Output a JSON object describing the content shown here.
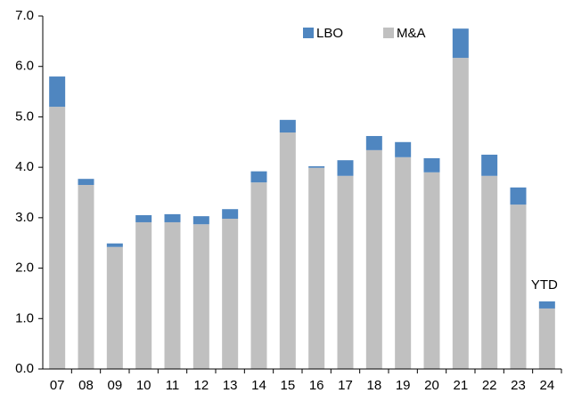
{
  "chart_data": {
    "type": "bar",
    "stacked": true,
    "categories": [
      "07",
      "08",
      "09",
      "10",
      "11",
      "12",
      "13",
      "14",
      "15",
      "16",
      "17",
      "18",
      "19",
      "20",
      "21",
      "22",
      "23",
      "24"
    ],
    "series": [
      {
        "name": "LBO",
        "color": "#4f86c0",
        "values": [
          0.6,
          0.12,
          0.07,
          0.14,
          0.16,
          0.16,
          0.19,
          0.22,
          0.25,
          0.03,
          0.31,
          0.28,
          0.3,
          0.28,
          0.58,
          0.42,
          0.34,
          0.14
        ]
      },
      {
        "name": "M&A",
        "color": "#c0c0c0",
        "values": [
          5.2,
          3.65,
          2.42,
          2.91,
          2.91,
          2.87,
          2.98,
          3.7,
          4.69,
          3.99,
          3.83,
          4.34,
          4.2,
          3.9,
          6.17,
          3.83,
          3.26,
          1.2
        ]
      }
    ],
    "annotation": "YTD",
    "ylim": [
      0,
      7
    ],
    "yticks": [
      {
        "value": 0,
        "label": "0.0"
      },
      {
        "value": 1,
        "label": "1.0"
      },
      {
        "value": 2,
        "label": "2.0"
      },
      {
        "value": 3,
        "label": "3.0"
      },
      {
        "value": 4,
        "label": "4.0"
      },
      {
        "value": 5,
        "label": "5.0"
      },
      {
        "value": 6,
        "label": "6.0"
      },
      {
        "value": 7,
        "label": "7.0"
      }
    ],
    "legend": "top"
  }
}
